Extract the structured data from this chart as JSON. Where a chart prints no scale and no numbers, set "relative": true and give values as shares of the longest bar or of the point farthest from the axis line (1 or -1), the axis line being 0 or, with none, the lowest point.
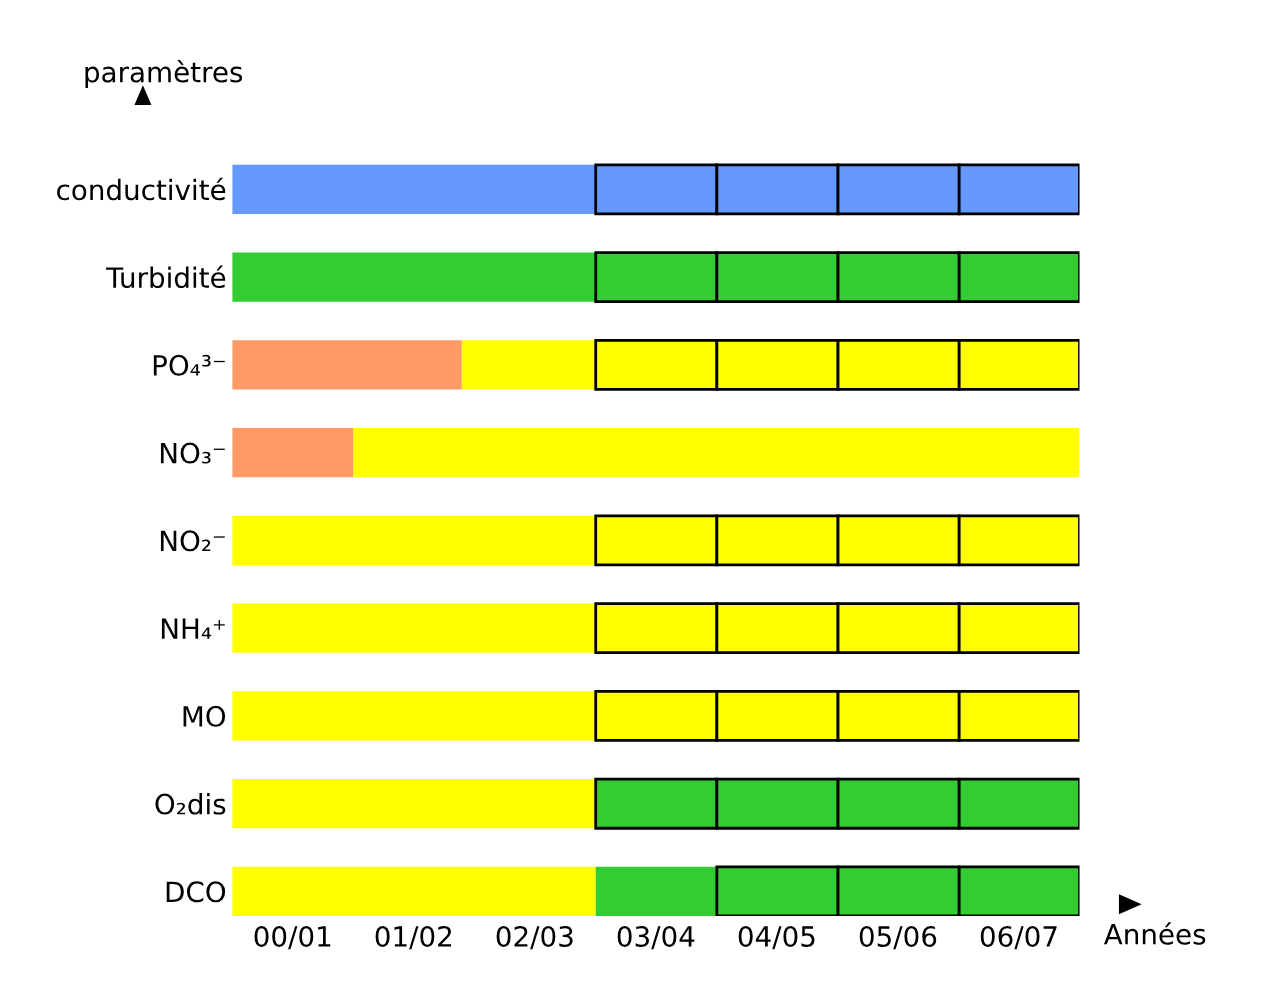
{
  "chart_data": {
    "type": "bar",
    "orientation": "horizontal",
    "stacked": true,
    "relative": true,
    "ylabel": "paramètres",
    "xlabel": "Années",
    "categories": [
      "conductivité",
      "Turbidité",
      "PO₄³⁻",
      "NO₃⁻",
      "NO₂⁻",
      "NH₄⁺",
      "MO",
      "O₂dis",
      "DCO"
    ],
    "annotations": [
      "00/01",
      "01/02",
      "02/03",
      "03/04",
      "04/05",
      "05/06",
      "06/07"
    ],
    "series": [
      {
        "values": [
          0.429,
          0.429,
          0.271,
          0.143,
          0.429,
          0.429,
          0.429,
          0.429,
          0.429
        ],
        "colors": [
          "#6699ff",
          "#33cc33",
          "#ff9966",
          "#ff9966",
          "#ffff00",
          "#ffff00",
          "#ffff00",
          "#ffff00",
          "#ffff00"
        ]
      },
      {
        "values": [
          null,
          null,
          0.158,
          0.857,
          null,
          null,
          null,
          null,
          0.143
        ],
        "colors": [
          "#6699ff",
          "#33cc33",
          "#ffff00",
          "#ffff00",
          "#ffff00",
          "#ffff00",
          "#ffff00",
          "#ffff00",
          "#33cc33"
        ]
      },
      {
        "values": [
          0.143,
          0.143,
          0.143,
          null,
          0.143,
          0.143,
          0.143,
          0.143,
          null
        ],
        "colors": [
          "#6699ff",
          "#33cc33",
          "#ffff00",
          "#ffff00",
          "#ffff00",
          "#ffff00",
          "#ffff00",
          "#33cc33",
          "#33cc33"
        ]
      },
      {
        "values": [
          0.143,
          0.143,
          0.143,
          null,
          0.143,
          0.143,
          0.143,
          0.143,
          0.143
        ],
        "colors": [
          "#6699ff",
          "#33cc33",
          "#ffff00",
          "#ffff00",
          "#ffff00",
          "#ffff00",
          "#ffff00",
          "#33cc33",
          "#33cc33"
        ]
      },
      {
        "values": [
          0.143,
          0.143,
          0.143,
          null,
          0.143,
          0.143,
          0.143,
          0.143,
          0.143
        ],
        "colors": [
          "#6699ff",
          "#33cc33",
          "#ffff00",
          "#ffff00",
          "#ffff00",
          "#ffff00",
          "#ffff00",
          "#33cc33",
          "#33cc33"
        ]
      },
      {
        "values": [
          0.142,
          0.142,
          0.142,
          null,
          0.142,
          0.142,
          0.142,
          0.142,
          0.142
        ],
        "colors": [
          "#6699ff",
          "#33cc33",
          "#ffff00",
          "#ffff00",
          "#ffff00",
          "#ffff00",
          "#ffff00",
          "#33cc33",
          "#33cc33"
        ]
      }
    ],
    "grid": false,
    "legend": false
  }
}
